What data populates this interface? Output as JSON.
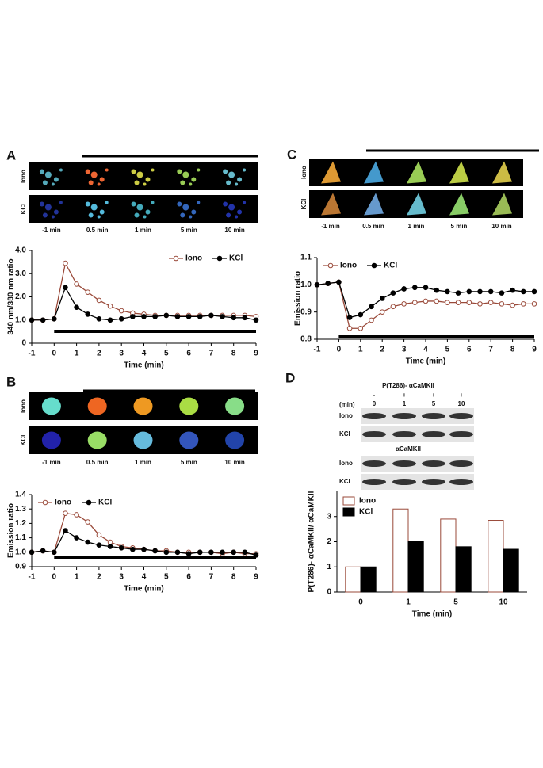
{
  "image_strips": [
    {
      "letter": "A",
      "rows": [
        "Iono",
        "KCl"
      ],
      "times": [
        "-1 min",
        "0.5 min",
        "1 min",
        "5 min",
        "10 min"
      ]
    },
    {
      "letter": "B",
      "rows": [
        "Iono",
        "KCl"
      ],
      "times": [
        "-1 min",
        "0.5 min",
        "1 min",
        "5 min",
        "10 min"
      ]
    },
    {
      "letter": "C",
      "rows": [
        "Iono",
        "KCl"
      ],
      "times": [
        "-1 min",
        "0.5 min",
        "1 min",
        "5 min",
        "10 min"
      ]
    }
  ],
  "blot": {
    "letter": "D",
    "title": "P(T286)- αCaMKII",
    "unit": "(min)",
    "treatment": [
      "-",
      "+",
      "+",
      "+"
    ],
    "times": [
      "0",
      "1",
      "5",
      "10"
    ],
    "rows": [
      "Iono",
      "KCl"
    ],
    "total_title": "αCaMKII",
    "total_rows": [
      "Iono",
      "KCl"
    ]
  },
  "chart_data": [
    {
      "type": "line",
      "xlabel": "Time (min)",
      "ylabel": "340 nm/380 nm ratio",
      "legend": "upper right",
      "x": [
        -1,
        -0.5,
        0,
        0.5,
        1,
        1.5,
        2,
        2.5,
        3,
        3.5,
        4,
        4.5,
        5,
        5.5,
        6,
        6.5,
        7,
        7.5,
        8,
        8.5,
        9
      ],
      "series": [
        {
          "name": "Iono",
          "color": "#9a4a3a",
          "marker": "open",
          "values": [
            1.0,
            1.0,
            1.05,
            3.45,
            2.55,
            2.2,
            1.85,
            1.6,
            1.4,
            1.3,
            1.25,
            1.2,
            1.2,
            1.2,
            1.2,
            1.2,
            1.2,
            1.2,
            1.2,
            1.2,
            1.15
          ]
        },
        {
          "name": "KCl",
          "color": "#000000",
          "marker": "filled",
          "values": [
            1.0,
            1.0,
            1.05,
            2.4,
            1.55,
            1.25,
            1.05,
            1.0,
            1.05,
            1.15,
            1.15,
            1.15,
            1.2,
            1.15,
            1.15,
            1.15,
            1.2,
            1.15,
            1.1,
            1.1,
            1.0
          ]
        }
      ],
      "xlim": [
        -1,
        9
      ],
      "ylim": [
        0,
        4
      ],
      "xticks": [
        -1,
        0,
        1,
        2,
        3,
        4,
        5,
        6,
        7,
        8,
        9
      ],
      "yticks": [
        0,
        {
          "value": 1,
          "label": "1.0"
        },
        {
          "value": 2,
          "label": "2.0"
        },
        {
          "value": 3,
          "label": "3.0"
        },
        {
          "value": 4,
          "label": "4.0"
        }
      ]
    },
    {
      "type": "line",
      "xlabel": "Time (min)",
      "ylabel": "Emission ratio",
      "legend": "upper left",
      "x": [
        -1,
        -0.5,
        0,
        0.5,
        1,
        1.5,
        2,
        2.5,
        3,
        3.5,
        4,
        4.5,
        5,
        5.5,
        6,
        6.5,
        7,
        7.5,
        8,
        8.5,
        9
      ],
      "series": [
        {
          "name": "Iono",
          "color": "#9a4a3a",
          "marker": "open",
          "values": [
            1.0,
            1.01,
            1.0,
            1.27,
            1.26,
            1.21,
            1.12,
            1.07,
            1.04,
            1.03,
            1.02,
            1.01,
            1.01,
            1.0,
            1.0,
            1.0,
            1.0,
            0.99,
            1.0,
            0.99,
            0.99
          ]
        },
        {
          "name": "KCl",
          "color": "#000000",
          "marker": "filled",
          "values": [
            1.0,
            1.01,
            1.0,
            1.15,
            1.1,
            1.07,
            1.05,
            1.04,
            1.03,
            1.02,
            1.02,
            1.01,
            1.0,
            1.0,
            0.99,
            1.0,
            1.0,
            1.0,
            1.0,
            1.0,
            0.98
          ]
        }
      ],
      "xlim": [
        -1,
        9
      ],
      "ylim": [
        0.9,
        1.4
      ],
      "xticks": [
        -1,
        0,
        1,
        2,
        3,
        4,
        5,
        6,
        7,
        8,
        9
      ],
      "yticks": [
        0.9,
        {
          "value": 1,
          "label": "1.0"
        },
        1.1,
        1.2,
        1.3,
        1.4
      ]
    },
    {
      "type": "line",
      "xlabel": "Time (min)",
      "ylabel": "Emission ratio",
      "legend": "upper left",
      "x": [
        -1,
        -0.5,
        0,
        0.5,
        1,
        1.5,
        2,
        2.5,
        3,
        3.5,
        4,
        4.5,
        5,
        5.5,
        6,
        6.5,
        7,
        7.5,
        8,
        8.5,
        9
      ],
      "series": [
        {
          "name": "Iono",
          "color": "#9a4a3a",
          "marker": "open",
          "values": [
            1.0,
            1.005,
            1.01,
            0.84,
            0.84,
            0.87,
            0.9,
            0.92,
            0.93,
            0.935,
            0.94,
            0.94,
            0.935,
            0.935,
            0.935,
            0.93,
            0.935,
            0.93,
            0.925,
            0.93,
            0.93
          ]
        },
        {
          "name": "KCl",
          "color": "#000000",
          "marker": "filled",
          "values": [
            1.0,
            1.005,
            1.01,
            0.88,
            0.89,
            0.92,
            0.95,
            0.97,
            0.985,
            0.99,
            0.99,
            0.98,
            0.975,
            0.97,
            0.975,
            0.975,
            0.975,
            0.97,
            0.98,
            0.975,
            0.975
          ]
        }
      ],
      "xlim": [
        -1,
        9
      ],
      "ylim": [
        0.8,
        1.1
      ],
      "xticks": [
        -1,
        0,
        1,
        2,
        3,
        4,
        5,
        6,
        7,
        8,
        9
      ],
      "yticks": [
        0.8,
        0.9,
        {
          "value": 1,
          "label": "1.0"
        },
        1.1
      ]
    },
    {
      "type": "bar",
      "xlabel": "Time (min)",
      "ylabel": "P(T286)- αCaMKII/ αCaMKII",
      "legend": "upper left",
      "categories": [
        "0",
        "1",
        "5",
        "10"
      ],
      "series": [
        {
          "name": "Iono",
          "color": "#ffffff",
          "edgecolor": "#9a4a3a",
          "values": [
            1,
            3.3,
            2.9,
            2.85
          ]
        },
        {
          "name": "KCl",
          "color": "#000000",
          "edgecolor": "#000000",
          "values": [
            1,
            2.0,
            1.8,
            1.7
          ]
        }
      ],
      "ylim": [
        0,
        4
      ],
      "yticks": [
        0,
        1,
        2,
        3
      ]
    }
  ]
}
